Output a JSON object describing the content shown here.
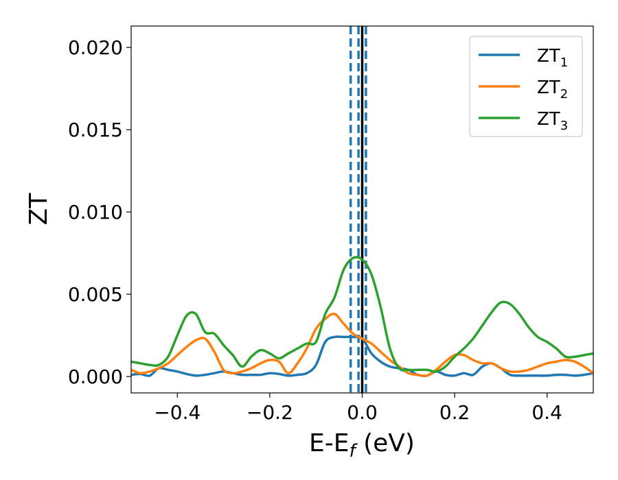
{
  "chart_data": {
    "type": "line",
    "xlabel": "E-E",
    "xlabel_sub": "f",
    "xlabel_unit": " (eV)",
    "ylabel": "ZT",
    "xlim": [
      -0.5,
      0.5
    ],
    "ylim": [
      -0.001,
      0.0213
    ],
    "xticks": [
      -0.4,
      -0.2,
      0.0,
      0.2,
      0.4
    ],
    "xtick_labels": [
      "−0.4",
      "−0.2",
      "0.0",
      "0.2",
      "0.4"
    ],
    "yticks": [
      0.0,
      0.005,
      0.01,
      0.015,
      0.02
    ],
    "ytick_labels": [
      "0.000",
      "0.005",
      "0.010",
      "0.015",
      "0.020"
    ],
    "grid": false,
    "legend_placement": "top-right",
    "vlines": [
      {
        "x": 0.0,
        "style": "solid",
        "color": "#000000"
      },
      {
        "x": -0.025,
        "style": "dashed",
        "color": "#1f77b4"
      },
      {
        "x": -0.008,
        "style": "dashed",
        "color": "#1f77b4"
      },
      {
        "x": 0.008,
        "style": "dashed",
        "color": "#1f77b4"
      }
    ],
    "series": [
      {
        "name": "ZT",
        "name_sub": "1",
        "color": "#1f77b4",
        "x": [
          -0.5,
          -0.48,
          -0.46,
          -0.44,
          -0.42,
          -0.4,
          -0.38,
          -0.36,
          -0.34,
          -0.32,
          -0.3,
          -0.28,
          -0.26,
          -0.24,
          -0.22,
          -0.2,
          -0.18,
          -0.16,
          -0.14,
          -0.12,
          -0.1,
          -0.08,
          -0.06,
          -0.04,
          -0.02,
          0.0,
          0.02,
          0.04,
          0.06,
          0.08,
          0.1,
          0.12,
          0.14,
          0.16,
          0.18,
          0.2,
          0.22,
          0.24,
          0.26,
          0.28,
          0.3,
          0.32,
          0.34,
          0.36,
          0.38,
          0.4,
          0.42,
          0.44,
          0.46,
          0.48,
          0.5
        ],
        "y": [
          0.0001,
          0.00015,
          5e-05,
          0.0005,
          0.0004,
          0.0003,
          0.00015,
          5e-05,
          0.0001,
          0.0002,
          0.0003,
          0.0002,
          0.0001,
          0.0001,
          0.0001,
          0.0002,
          0.00015,
          5e-05,
          0.0001,
          0.0002,
          0.0007,
          0.0021,
          0.0024,
          0.0024,
          0.0024,
          0.0023,
          0.0014,
          0.0009,
          0.0006,
          0.0005,
          0.0004,
          0.0001,
          5e-05,
          0.0003,
          0.0001,
          5e-05,
          0.0002,
          0.0001,
          0.0006,
          0.0008,
          0.0005,
          0.0001,
          5e-05,
          5e-05,
          5e-05,
          5e-05,
          0.0001,
          0.0001,
          5e-05,
          0.0001,
          0.0002
        ]
      },
      {
        "name": "ZT",
        "name_sub": "2",
        "color": "#ff7f0e",
        "x": [
          -0.5,
          -0.48,
          -0.46,
          -0.44,
          -0.42,
          -0.4,
          -0.38,
          -0.36,
          -0.34,
          -0.32,
          -0.3,
          -0.28,
          -0.26,
          -0.24,
          -0.22,
          -0.2,
          -0.18,
          -0.16,
          -0.14,
          -0.12,
          -0.1,
          -0.08,
          -0.06,
          -0.04,
          -0.02,
          0.0,
          0.02,
          0.04,
          0.06,
          0.08,
          0.1,
          0.12,
          0.14,
          0.16,
          0.18,
          0.2,
          0.22,
          0.24,
          0.26,
          0.28,
          0.3,
          0.32,
          0.34,
          0.36,
          0.38,
          0.4,
          0.42,
          0.44,
          0.46,
          0.48,
          0.5
        ],
        "y": [
          0.0004,
          0.0002,
          0.0003,
          0.0005,
          0.0008,
          0.0013,
          0.0018,
          0.0022,
          0.0023,
          0.0015,
          0.0004,
          0.0002,
          0.0003,
          0.0005,
          0.0008,
          0.001,
          0.0009,
          0.0002,
          0.0008,
          0.0017,
          0.0029,
          0.0035,
          0.0038,
          0.0032,
          0.0026,
          0.0023,
          0.002,
          0.0015,
          0.001,
          0.0006,
          0.0002,
          0.0001,
          5e-05,
          0.0004,
          0.0009,
          0.0013,
          0.0013,
          0.001,
          0.0008,
          0.0008,
          0.0005,
          0.0003,
          0.0003,
          0.0004,
          0.0006,
          0.0008,
          0.0009,
          0.001,
          0.0009,
          0.0006,
          0.0002
        ]
      },
      {
        "name": "ZT",
        "name_sub": "3",
        "color": "#2ca02c",
        "x": [
          -0.5,
          -0.48,
          -0.46,
          -0.44,
          -0.42,
          -0.4,
          -0.38,
          -0.36,
          -0.34,
          -0.32,
          -0.3,
          -0.28,
          -0.26,
          -0.24,
          -0.22,
          -0.2,
          -0.18,
          -0.16,
          -0.14,
          -0.12,
          -0.1,
          -0.08,
          -0.06,
          -0.04,
          -0.02,
          0.0,
          0.02,
          0.04,
          0.06,
          0.08,
          0.1,
          0.12,
          0.14,
          0.16,
          0.18,
          0.2,
          0.22,
          0.24,
          0.26,
          0.28,
          0.3,
          0.32,
          0.34,
          0.36,
          0.38,
          0.4,
          0.42,
          0.44,
          0.46,
          0.48,
          0.5
        ],
        "y": [
          0.0009,
          0.0008,
          0.0007,
          0.0007,
          0.0012,
          0.0025,
          0.0037,
          0.0038,
          0.0027,
          0.0026,
          0.0019,
          0.0013,
          0.0006,
          0.0012,
          0.0016,
          0.0014,
          0.0011,
          0.0014,
          0.0017,
          0.002,
          0.0021,
          0.0038,
          0.0048,
          0.0065,
          0.0072,
          0.0071,
          0.0062,
          0.0042,
          0.0017,
          0.0005,
          0.0004,
          0.0004,
          0.0004,
          0.0003,
          0.0006,
          0.0012,
          0.0017,
          0.0023,
          0.0031,
          0.0039,
          0.0045,
          0.0044,
          0.0038,
          0.003,
          0.0024,
          0.0021,
          0.0017,
          0.0012,
          0.0012,
          0.0013,
          0.0014
        ]
      }
    ]
  }
}
